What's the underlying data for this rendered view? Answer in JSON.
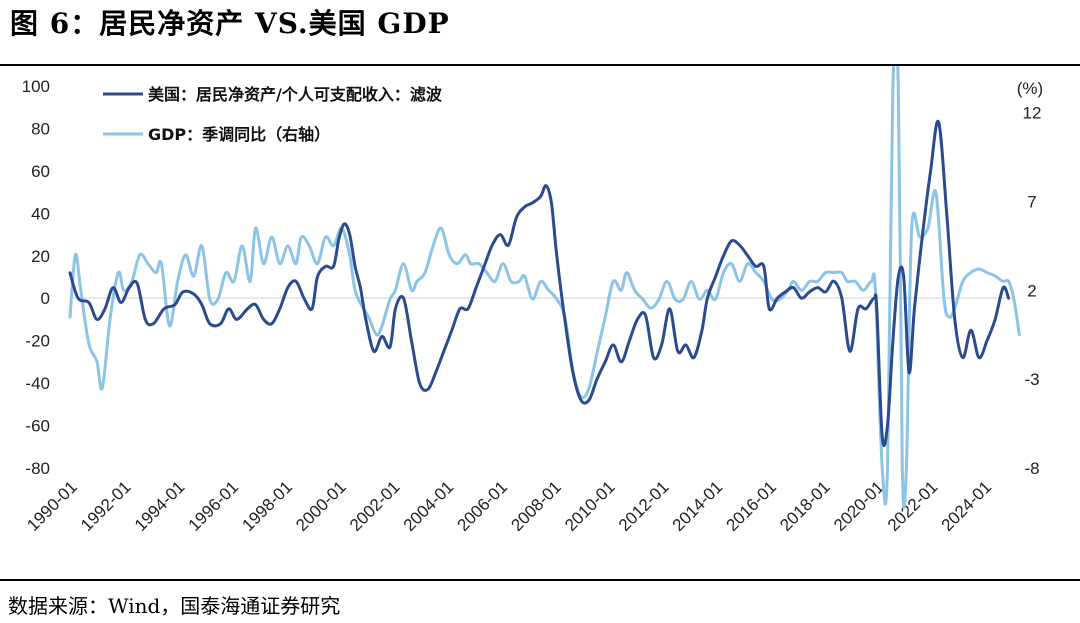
{
  "title": "图 6：居民净资产 VS.美国 GDP",
  "source": "数据来源：Wind，国泰海通证券研究",
  "chart_data": {
    "type": "line",
    "left_axis": {
      "ticks": [
        100,
        80,
        60,
        40,
        20,
        0,
        -20,
        -40,
        -60,
        -80
      ],
      "range": [
        -80,
        100
      ]
    },
    "right_axis": {
      "unit": "(%)",
      "ticks": [
        12,
        7,
        2,
        -3,
        -8
      ],
      "range": [
        -8,
        13.5
      ]
    },
    "x_tick_labels": [
      "1990-01",
      "1992-01",
      "1994-01",
      "1996-01",
      "1998-01",
      "2000-01",
      "2002-01",
      "2004-01",
      "2006-01",
      "2008-01",
      "2010-01",
      "2012-01",
      "2014-01",
      "2016-01",
      "2018-01",
      "2020-01",
      "2022-01",
      "2024-01"
    ],
    "colors": {
      "dark": "#2b4b8f",
      "light": "#8cc4e6"
    },
    "series": [
      {
        "name": "美国：居民净资产/个人可支配收入：滤波",
        "axis": "left",
        "points": [
          [
            1990.0,
            12
          ],
          [
            1990.3,
            0
          ],
          [
            1990.7,
            -2
          ],
          [
            1991.0,
            -10
          ],
          [
            1991.3,
            -5
          ],
          [
            1991.6,
            5
          ],
          [
            1991.9,
            -2
          ],
          [
            1992.2,
            5
          ],
          [
            1992.5,
            7
          ],
          [
            1992.8,
            -10
          ],
          [
            1993.1,
            -12
          ],
          [
            1993.5,
            -5
          ],
          [
            1993.9,
            -3
          ],
          [
            1994.2,
            3
          ],
          [
            1994.6,
            2
          ],
          [
            1994.9,
            -3
          ],
          [
            1995.2,
            -12
          ],
          [
            1995.6,
            -12
          ],
          [
            1995.9,
            -5
          ],
          [
            1996.2,
            -10
          ],
          [
            1996.6,
            -5
          ],
          [
            1996.9,
            -3
          ],
          [
            1997.2,
            -10
          ],
          [
            1997.5,
            -12
          ],
          [
            1997.8,
            -5
          ],
          [
            1998.1,
            5
          ],
          [
            1998.4,
            8
          ],
          [
            1998.7,
            0
          ],
          [
            1999.0,
            -5
          ],
          [
            1999.2,
            10
          ],
          [
            1999.5,
            15
          ],
          [
            1999.8,
            15
          ],
          [
            2000.0,
            28
          ],
          [
            2000.2,
            35
          ],
          [
            2000.4,
            30
          ],
          [
            2000.6,
            15
          ],
          [
            2000.8,
            5
          ],
          [
            2001.0,
            -10
          ],
          [
            2001.3,
            -25
          ],
          [
            2001.6,
            -18
          ],
          [
            2001.9,
            -23
          ],
          [
            2002.1,
            -5
          ],
          [
            2002.4,
            0
          ],
          [
            2002.7,
            -20
          ],
          [
            2003.0,
            -40
          ],
          [
            2003.3,
            -43
          ],
          [
            2003.6,
            -35
          ],
          [
            2003.9,
            -25
          ],
          [
            2004.2,
            -15
          ],
          [
            2004.5,
            -5
          ],
          [
            2004.8,
            -5
          ],
          [
            2005.1,
            5
          ],
          [
            2005.4,
            15
          ],
          [
            2005.7,
            25
          ],
          [
            2006.0,
            30
          ],
          [
            2006.3,
            25
          ],
          [
            2006.6,
            38
          ],
          [
            2006.9,
            43
          ],
          [
            2007.2,
            45
          ],
          [
            2007.5,
            48
          ],
          [
            2007.7,
            53
          ],
          [
            2007.9,
            45
          ],
          [
            2008.1,
            20
          ],
          [
            2008.4,
            -10
          ],
          [
            2008.7,
            -35
          ],
          [
            2009.0,
            -48
          ],
          [
            2009.3,
            -48
          ],
          [
            2009.6,
            -38
          ],
          [
            2009.9,
            -30
          ],
          [
            2010.2,
            -22
          ],
          [
            2010.5,
            -30
          ],
          [
            2010.8,
            -20
          ],
          [
            2011.1,
            -10
          ],
          [
            2011.4,
            -8
          ],
          [
            2011.7,
            -28
          ],
          [
            2012.0,
            -22
          ],
          [
            2012.3,
            -5
          ],
          [
            2012.6,
            -25
          ],
          [
            2012.9,
            -22
          ],
          [
            2013.2,
            -28
          ],
          [
            2013.5,
            -15
          ],
          [
            2013.7,
            0
          ],
          [
            2014.0,
            10
          ],
          [
            2014.3,
            20
          ],
          [
            2014.6,
            27
          ],
          [
            2014.9,
            25
          ],
          [
            2015.2,
            20
          ],
          [
            2015.5,
            15
          ],
          [
            2015.8,
            15
          ],
          [
            2016.0,
            -5
          ],
          [
            2016.3,
            0
          ],
          [
            2016.6,
            3
          ],
          [
            2016.9,
            5
          ],
          [
            2017.2,
            0
          ],
          [
            2017.5,
            3
          ],
          [
            2017.8,
            5
          ],
          [
            2018.1,
            3
          ],
          [
            2018.4,
            8
          ],
          [
            2018.7,
            0
          ],
          [
            2019.0,
            -25
          ],
          [
            2019.3,
            -5
          ],
          [
            2019.6,
            -5
          ],
          [
            2019.9,
            0
          ],
          [
            2020.0,
            -5
          ],
          [
            2020.2,
            -65
          ],
          [
            2020.4,
            -60
          ],
          [
            2020.6,
            -20
          ],
          [
            2020.8,
            10
          ],
          [
            2021.0,
            10
          ],
          [
            2021.2,
            -35
          ],
          [
            2021.4,
            -5
          ],
          [
            2021.7,
            30
          ],
          [
            2022.0,
            60
          ],
          [
            2022.3,
            83
          ],
          [
            2022.6,
            40
          ],
          [
            2022.9,
            -10
          ],
          [
            2023.2,
            -28
          ],
          [
            2023.5,
            -15
          ],
          [
            2023.8,
            -28
          ],
          [
            2024.1,
            -20
          ],
          [
            2024.4,
            -10
          ],
          [
            2024.7,
            5
          ],
          [
            2024.9,
            0
          ]
        ]
      },
      {
        "name": "GDP：季调同比（右轴）",
        "axis": "right",
        "points": [
          [
            1990.0,
            0.5
          ],
          [
            1990.2,
            4.0
          ],
          [
            1990.4,
            2.0
          ],
          [
            1990.7,
            -1.0
          ],
          [
            1991.0,
            -2.0
          ],
          [
            1991.2,
            -3.5
          ],
          [
            1991.5,
            0.5
          ],
          [
            1991.8,
            3.0
          ],
          [
            1992.0,
            2.0
          ],
          [
            1992.3,
            2.5
          ],
          [
            1992.6,
            4.0
          ],
          [
            1992.9,
            3.5
          ],
          [
            1993.2,
            3.0
          ],
          [
            1993.4,
            3.5
          ],
          [
            1993.7,
            0.0
          ],
          [
            1994.0,
            2.5
          ],
          [
            1994.3,
            4.0
          ],
          [
            1994.6,
            2.8
          ],
          [
            1994.9,
            4.5
          ],
          [
            1995.2,
            1.5
          ],
          [
            1995.5,
            1.5
          ],
          [
            1995.8,
            3.0
          ],
          [
            1996.1,
            2.5
          ],
          [
            1996.4,
            4.5
          ],
          [
            1996.7,
            2.5
          ],
          [
            1996.9,
            5.5
          ],
          [
            1997.2,
            3.5
          ],
          [
            1997.5,
            5.0
          ],
          [
            1997.8,
            3.5
          ],
          [
            1998.1,
            4.5
          ],
          [
            1998.4,
            3.5
          ],
          [
            1998.6,
            5.0
          ],
          [
            1998.9,
            4.5
          ],
          [
            1999.2,
            3.5
          ],
          [
            1999.5,
            5.0
          ],
          [
            1999.8,
            4.5
          ],
          [
            2000.1,
            5.5
          ],
          [
            2000.4,
            4.0
          ],
          [
            2000.6,
            2.0
          ],
          [
            2000.9,
            1.0
          ],
          [
            2001.1,
            0.5
          ],
          [
            2001.4,
            -0.5
          ],
          [
            2001.6,
            0.0
          ],
          [
            2001.9,
            1.5
          ],
          [
            2002.1,
            2.0
          ],
          [
            2002.4,
            3.5
          ],
          [
            2002.7,
            2.0
          ],
          [
            2002.9,
            2.5
          ],
          [
            2003.2,
            3.0
          ],
          [
            2003.5,
            4.5
          ],
          [
            2003.8,
            5.5
          ],
          [
            2004.1,
            4.0
          ],
          [
            2004.4,
            3.5
          ],
          [
            2004.7,
            4.0
          ],
          [
            2004.9,
            3.5
          ],
          [
            2005.2,
            3.5
          ],
          [
            2005.5,
            3.0
          ],
          [
            2005.8,
            2.5
          ],
          [
            2006.1,
            3.5
          ],
          [
            2006.4,
            2.5
          ],
          [
            2006.7,
            2.5
          ],
          [
            2006.9,
            2.8
          ],
          [
            2007.2,
            1.5
          ],
          [
            2007.5,
            2.5
          ],
          [
            2007.8,
            2.0
          ],
          [
            2008.1,
            1.5
          ],
          [
            2008.4,
            0.5
          ],
          [
            2008.7,
            -2.5
          ],
          [
            2009.0,
            -4.0
          ],
          [
            2009.3,
            -3.5
          ],
          [
            2009.6,
            -1.5
          ],
          [
            2009.9,
            0.5
          ],
          [
            2010.2,
            2.5
          ],
          [
            2010.5,
            2.0
          ],
          [
            2010.7,
            3.0
          ],
          [
            2011.0,
            2.0
          ],
          [
            2011.3,
            1.5
          ],
          [
            2011.6,
            1.0
          ],
          [
            2011.9,
            1.5
          ],
          [
            2012.2,
            2.5
          ],
          [
            2012.5,
            1.5
          ],
          [
            2012.8,
            1.5
          ],
          [
            2013.1,
            2.5
          ],
          [
            2013.4,
            1.5
          ],
          [
            2013.7,
            2.0
          ],
          [
            2014.0,
            1.5
          ],
          [
            2014.3,
            3.0
          ],
          [
            2014.6,
            3.5
          ],
          [
            2014.9,
            2.5
          ],
          [
            2015.2,
            3.5
          ],
          [
            2015.5,
            3.0
          ],
          [
            2015.8,
            2.5
          ],
          [
            2016.1,
            1.5
          ],
          [
            2016.4,
            1.5
          ],
          [
            2016.7,
            2.0
          ],
          [
            2016.9,
            2.5
          ],
          [
            2017.2,
            2.0
          ],
          [
            2017.5,
            2.5
          ],
          [
            2017.8,
            2.5
          ],
          [
            2018.1,
            3.0
          ],
          [
            2018.4,
            3.0
          ],
          [
            2018.7,
            3.0
          ],
          [
            2018.9,
            2.5
          ],
          [
            2019.2,
            2.5
          ],
          [
            2019.5,
            2.0
          ],
          [
            2019.8,
            2.5
          ],
          [
            2019.95,
            2.0
          ],
          [
            2020.2,
            -8.0
          ],
          [
            2020.4,
            -8.0
          ],
          [
            2020.6,
            13.5
          ],
          [
            2020.8,
            13.5
          ],
          [
            2020.95,
            -8.0
          ],
          [
            2021.1,
            -8.0
          ],
          [
            2021.3,
            5.5
          ],
          [
            2021.6,
            5.0
          ],
          [
            2021.9,
            5.5
          ],
          [
            2022.2,
            7.5
          ],
          [
            2022.5,
            1.5
          ],
          [
            2022.7,
            0.5
          ],
          [
            2022.9,
            1.0
          ],
          [
            2023.2,
            2.5
          ],
          [
            2023.5,
            3.0
          ],
          [
            2023.8,
            3.2
          ],
          [
            2024.1,
            3.0
          ],
          [
            2024.4,
            2.8
          ],
          [
            2024.7,
            2.5
          ],
          [
            2024.9,
            2.5
          ],
          [
            2025.1,
            1.5
          ],
          [
            2025.3,
            -0.5
          ]
        ]
      }
    ]
  }
}
